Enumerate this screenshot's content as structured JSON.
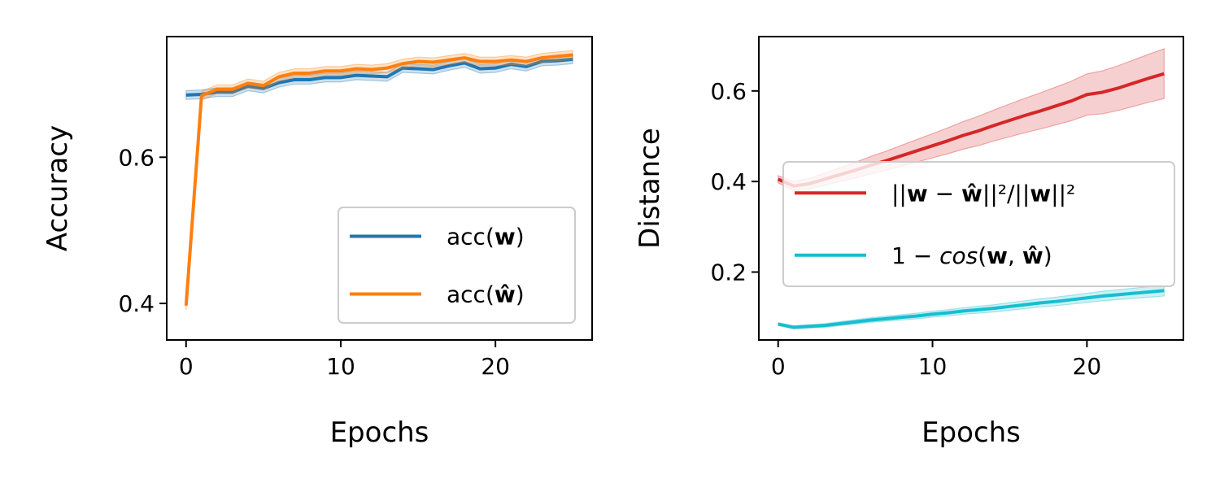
{
  "chart_data": [
    {
      "type": "line",
      "xlabel": "Epochs",
      "ylabel": "Accuracy",
      "xlim": [
        -1.25,
        26.25
      ],
      "ylim": [
        0.35,
        0.765
      ],
      "xticks": [
        "0",
        "10",
        "20"
      ],
      "yticks": [
        "0.4",
        "0.6"
      ],
      "xtick_values": [
        0,
        10,
        20
      ],
      "ytick_values": [
        0.4,
        0.6
      ],
      "grid": false,
      "legend_position": "lower-right",
      "x": [
        0,
        1,
        2,
        3,
        4,
        5,
        6,
        7,
        8,
        9,
        10,
        11,
        12,
        13,
        14,
        15,
        16,
        17,
        18,
        19,
        20,
        21,
        22,
        23,
        24,
        25
      ],
      "series": [
        {
          "legend_main": "acc(",
          "legend_bold": "w",
          "legend_tail": ")",
          "color": "#1f77b4",
          "band": 0.006,
          "values": [
            0.685,
            0.686,
            0.689,
            0.689,
            0.697,
            0.694,
            0.702,
            0.706,
            0.706,
            0.709,
            0.709,
            0.712,
            0.711,
            0.71,
            0.722,
            0.721,
            0.72,
            0.725,
            0.729,
            0.721,
            0.722,
            0.727,
            0.724,
            0.731,
            0.732,
            0.734
          ]
        },
        {
          "legend_main": "acc(",
          "legend_bold": "ŵ",
          "legend_tail": ")",
          "color": "#ff7f0e",
          "band": 0.006,
          "values": [
            0.397,
            0.684,
            0.693,
            0.693,
            0.701,
            0.698,
            0.71,
            0.715,
            0.715,
            0.718,
            0.718,
            0.721,
            0.72,
            0.722,
            0.728,
            0.731,
            0.73,
            0.733,
            0.736,
            0.731,
            0.731,
            0.733,
            0.731,
            0.736,
            0.738,
            0.74
          ]
        }
      ]
    },
    {
      "type": "line",
      "xlabel": "Epochs",
      "ylabel": "Distance",
      "xlim": [
        -1.25,
        26.25
      ],
      "ylim": [
        0.05,
        0.72
      ],
      "xticks": [
        "0",
        "10",
        "20"
      ],
      "yticks": [
        "0.2",
        "0.4",
        "0.6"
      ],
      "xtick_values": [
        0,
        10,
        20
      ],
      "ytick_values": [
        0.2,
        0.4,
        0.6
      ],
      "grid": false,
      "legend_position": "center-right",
      "x": [
        0,
        1,
        2,
        3,
        4,
        5,
        6,
        7,
        8,
        9,
        10,
        11,
        12,
        13,
        14,
        15,
        16,
        17,
        18,
        19,
        20,
        21,
        22,
        23,
        24,
        25
      ],
      "series": [
        {
          "legend_parts": [
            "||",
            "w",
            " − ",
            "ŵ",
            "||²/||",
            "w",
            "||²"
          ],
          "color": "#d62728",
          "band_start": 0.008,
          "band_end": 0.055,
          "values": [
            0.405,
            0.39,
            0.395,
            0.405,
            0.415,
            0.425,
            0.436,
            0.446,
            0.457,
            0.468,
            0.479,
            0.49,
            0.502,
            0.512,
            0.524,
            0.535,
            0.546,
            0.556,
            0.567,
            0.578,
            0.592,
            0.597,
            0.606,
            0.617,
            0.628,
            0.638
          ]
        },
        {
          "legend_parts": [
            "1 − ",
            "cos",
            "(",
            "w",
            ", ",
            "ŵ",
            ")"
          ],
          "color": "#17becf",
          "band_start": 0.003,
          "band_end": 0.012,
          "values": [
            0.085,
            0.078,
            0.08,
            0.082,
            0.086,
            0.09,
            0.094,
            0.097,
            0.1,
            0.103,
            0.107,
            0.11,
            0.114,
            0.117,
            0.12,
            0.124,
            0.128,
            0.132,
            0.135,
            0.139,
            0.143,
            0.147,
            0.15,
            0.153,
            0.156,
            0.159
          ]
        }
      ]
    }
  ]
}
